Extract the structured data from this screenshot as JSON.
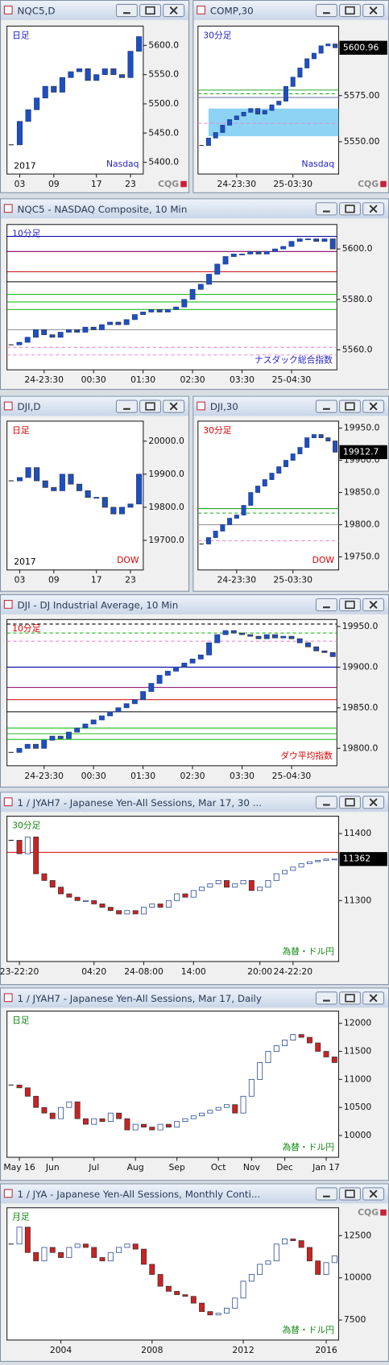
{
  "logo": "CQG",
  "windows": [
    {
      "title": "NQC5,D",
      "ylim": [
        5380,
        5633
      ],
      "up": "#1f4fbf",
      "down": "#1f4fbf",
      "yticks": [
        {
          "value": 5600,
          "label": "5600.0"
        },
        {
          "value": 5550,
          "label": "5550.0"
        },
        {
          "value": 5500,
          "label": "5500.0"
        },
        {
          "value": 5450,
          "label": "5450.0"
        },
        {
          "value": 5400,
          "label": "5400.0"
        }
      ],
      "categories": [
        null,
        "03",
        null,
        null,
        null,
        "09",
        null,
        null,
        null,
        null,
        "17",
        null,
        null,
        null,
        "23",
        null
      ],
      "closes": [
        5430,
        5470,
        5490,
        5510,
        5530,
        5520,
        5545,
        5555,
        5560,
        5540,
        5550,
        5560,
        5550,
        5545,
        5590,
        5615
      ],
      "levels": [],
      "notes": [
        {
          "text": "日足",
          "color": "#2222cc",
          "corner": "tl"
        },
        {
          "text": "2017",
          "color": "#000000",
          "corner": "bl"
        },
        {
          "text": "Nasdaq",
          "color": "#2222cc",
          "corner": "br"
        }
      ]
    },
    {
      "title": "COMP,30",
      "ylim": [
        5532.5,
        5612.7
      ],
      "up": "#1f4fbf",
      "down": "#1f4fbf",
      "last": 5600.96,
      "zone": [
        5553,
        5568
      ],
      "yticks": [
        {
          "value": 5575,
          "label": "5575.00"
        },
        {
          "value": 5550,
          "label": "5550.00"
        }
      ],
      "categories": [
        null,
        null,
        null,
        null,
        null,
        "24-23:30",
        null,
        null,
        null,
        null,
        null,
        null,
        null,
        "25-03:30",
        null,
        null,
        null,
        null,
        null,
        null
      ],
      "closes": [
        5548,
        5552,
        5555,
        5559,
        5562,
        5564,
        5566,
        5568,
        5565,
        5567,
        5570,
        5572,
        5580,
        5585,
        5590,
        5595,
        5598,
        5602,
        5603,
        5601
      ],
      "levels": [
        {
          "value": 5578,
          "color": "#22aa22"
        },
        {
          "value": 5576,
          "color": "#22aa22",
          "dash": true
        },
        {
          "value": 5574,
          "color": "#7777aa"
        },
        {
          "value": 5560,
          "color": "#ee88cc",
          "dash": true
        }
      ],
      "notes": [
        {
          "text": "30分足",
          "color": "#2222cc",
          "corner": "tl"
        },
        {
          "text": "Nasdaq",
          "color": "#2222cc",
          "corner": "br"
        }
      ]
    },
    {
      "title": "NQC5 - NASDAQ Composite, 10 Min",
      "ylim": [
        5552.1,
        5609.7
      ],
      "up": "#1f4fbf",
      "down": "#1f4fbf",
      "yticks": [
        {
          "value": 5600,
          "label": "5600.0"
        },
        {
          "value": 5580,
          "label": "5580.0"
        },
        {
          "value": 5560,
          "label": "5560.0"
        }
      ],
      "categories": [
        null,
        null,
        null,
        null,
        "24-23:30",
        null,
        null,
        null,
        null,
        null,
        "00:30",
        null,
        null,
        null,
        null,
        null,
        "01:30",
        null,
        null,
        null,
        null,
        null,
        "02:30",
        null,
        null,
        null,
        null,
        null,
        "03:30",
        null,
        null,
        null,
        null,
        null,
        "25-04:30",
        null,
        null,
        null,
        null,
        null
      ],
      "closes": [
        5562,
        5563,
        5565,
        5568,
        5566,
        5565,
        5567,
        5568,
        5567,
        5569,
        5568,
        5570,
        5571,
        5570,
        5572,
        5574,
        5575,
        5576,
        5575,
        5576,
        5577,
        5580,
        5584,
        5586,
        5590,
        5594,
        5597,
        5598,
        5598,
        5599,
        5598,
        5599,
        5600,
        5601,
        5603,
        5604,
        5604,
        5603,
        5604,
        5600
      ],
      "levels": [
        {
          "value": 5605,
          "color": "#0000aa"
        },
        {
          "value": 5599,
          "color": "#880066"
        },
        {
          "value": 5591,
          "color": "#cc0000"
        },
        {
          "value": 5587,
          "color": "#000000"
        },
        {
          "value": 5582,
          "color": "#22bb22"
        },
        {
          "value": 5579,
          "color": "#22bb22"
        },
        {
          "value": 5576,
          "color": "#22bb22"
        },
        {
          "value": 5568,
          "color": "#999999"
        },
        {
          "value": 5561,
          "color": "#ee88cc",
          "dash": true
        },
        {
          "value": 5558,
          "color": "#ee88cc",
          "dash": true
        }
      ],
      "notes": [
        {
          "text": "10分足",
          "color": "#2222cc",
          "corner": "tl"
        },
        {
          "text": "ナスダック総合指数",
          "color": "#2222cc",
          "corner": "br"
        }
      ]
    },
    {
      "title": "DJI,D",
      "ylim": [
        19610.5,
        20060.5
      ],
      "up": "#1f4fbf",
      "down": "#1f4fbf",
      "yticks": [
        {
          "value": 20000,
          "label": "20000.0"
        },
        {
          "value": 19900,
          "label": "19900.0"
        },
        {
          "value": 19800,
          "label": "19800.0"
        },
        {
          "value": 19700,
          "label": "19700.0"
        }
      ],
      "categories": [
        null,
        "03",
        null,
        null,
        null,
        "09",
        null,
        null,
        null,
        null,
        "17",
        null,
        null,
        null,
        "23",
        null
      ],
      "closes": [
        19880,
        19890,
        19920,
        19880,
        19860,
        19850,
        19900,
        19870,
        19850,
        19830,
        19830,
        19800,
        19780,
        19800,
        19810,
        19900
      ],
      "levels": [],
      "notes": [
        {
          "text": "日足",
          "color": "#dd0000",
          "corner": "tl"
        },
        {
          "text": "2017",
          "color": "#000000",
          "corner": "bl"
        },
        {
          "text": "DOW",
          "color": "#dd0000",
          "corner": "br"
        }
      ]
    },
    {
      "title": "DJI,30",
      "ylim": [
        19729.7,
        19960.8
      ],
      "up": "#1f4fbf",
      "down": "#1f4fbf",
      "last": 19912.7,
      "yticks": [
        {
          "value": 19950,
          "label": "19950.0"
        },
        {
          "value": 19900,
          "label": "19900.0"
        },
        {
          "value": 19850,
          "label": "19850.0"
        },
        {
          "value": 19800,
          "label": "19800.0"
        },
        {
          "value": 19750,
          "label": "19750.0"
        }
      ],
      "categories": [
        null,
        null,
        null,
        null,
        null,
        "24-23:30",
        null,
        null,
        null,
        null,
        null,
        null,
        null,
        "25-03:30",
        null,
        null,
        null,
        null,
        null,
        null
      ],
      "closes": [
        19770,
        19780,
        19790,
        19800,
        19810,
        19815,
        19830,
        19850,
        19860,
        19870,
        19880,
        19890,
        19900,
        19910,
        19920,
        19935,
        19940,
        19935,
        19930,
        19912.7
      ],
      "levels": [
        {
          "value": 19825,
          "color": "#22aa22"
        },
        {
          "value": 19818,
          "color": "#22aa22",
          "dash": true
        },
        {
          "value": 19800,
          "color": "#999999"
        },
        {
          "value": 19775,
          "color": "#ee88cc",
          "dash": true
        }
      ],
      "notes": [
        {
          "text": "30分足",
          "color": "#dd0000",
          "corner": "tl"
        },
        {
          "text": "DOW",
          "color": "#dd0000",
          "corner": "br"
        }
      ]
    },
    {
      "title": "DJI - DJ Industrial Average, 10 Min",
      "ylim": [
        19778.6,
        19958.6
      ],
      "up": "#1f4fbf",
      "down": "#1f4fbf",
      "yticks": [
        {
          "value": 19950,
          "label": "19950.0"
        },
        {
          "value": 19900,
          "label": "19900.0"
        },
        {
          "value": 19850,
          "label": "19850.0"
        },
        {
          "value": 19800,
          "label": "19800.0"
        }
      ],
      "categories": [
        null,
        null,
        null,
        null,
        "24-23:30",
        null,
        null,
        null,
        null,
        null,
        "00:30",
        null,
        null,
        null,
        null,
        null,
        "01:30",
        null,
        null,
        null,
        null,
        null,
        "02:30",
        null,
        null,
        null,
        null,
        null,
        "03:30",
        null,
        null,
        null,
        null,
        null,
        "25-04:30",
        null,
        null,
        null,
        null,
        null
      ],
      "closes": [
        19795,
        19800,
        19805,
        19800,
        19810,
        19815,
        19812,
        19820,
        19825,
        19830,
        19835,
        19840,
        19845,
        19850,
        19855,
        19860,
        19870,
        19880,
        19890,
        19895,
        19900,
        19905,
        19910,
        19915,
        19930,
        19940,
        19945,
        19942,
        19940,
        19938,
        19935,
        19940,
        19936,
        19938,
        19935,
        19930,
        19925,
        19920,
        19918,
        19913
      ],
      "levels": [
        {
          "value": 19953,
          "color": "#000000",
          "dash": true
        },
        {
          "value": 19942,
          "color": "#22bb22",
          "dash": true
        },
        {
          "value": 19932,
          "color": "#ee88cc",
          "dash": true
        },
        {
          "value": 19900,
          "color": "#0000aa"
        },
        {
          "value": 19875,
          "color": "#880066"
        },
        {
          "value": 19860,
          "color": "#cc0000"
        },
        {
          "value": 19845,
          "color": "#000000"
        },
        {
          "value": 19825,
          "color": "#22bb22"
        },
        {
          "value": 19818,
          "color": "#22bb22"
        },
        {
          "value": 19811,
          "color": "#22bb22"
        }
      ],
      "notes": [
        {
          "text": "10分足",
          "color": "#dd0000",
          "corner": "tl"
        },
        {
          "text": "ダウ平均指数",
          "color": "#dd0000",
          "corner": "br"
        }
      ]
    },
    {
      "title": "1 / JYAH7 - Japanese Yen-All Sessions, Mar 17, 30 ...",
      "ylim": [
        11209,
        11426
      ],
      "up": "#ffffff",
      "down": "#cc2222",
      "last": 11362,
      "yticks": [
        11400,
        11300
      ],
      "categories": [
        null,
        "23-22:20",
        null,
        null,
        null,
        null,
        null,
        null,
        null,
        null,
        "04:20",
        null,
        null,
        null,
        null,
        null,
        "24-08:00",
        null,
        null,
        null,
        null,
        null,
        "14:00",
        null,
        null,
        null,
        null,
        null,
        null,
        null,
        "20:00",
        null,
        null,
        null,
        "24-22:20",
        null,
        null,
        null,
        null,
        null
      ],
      "closes": [
        11390,
        11370,
        11395,
        11340,
        11330,
        11320,
        11310,
        11305,
        11300,
        11300,
        11295,
        11290,
        11285,
        11280,
        11285,
        11280,
        11290,
        11295,
        11290,
        11300,
        11310,
        11305,
        11315,
        11320,
        11325,
        11330,
        11320,
        11325,
        11330,
        11315,
        11320,
        11330,
        11340,
        11345,
        11350,
        11355,
        11358,
        11360,
        11362,
        11362
      ],
      "levels": [
        {
          "value": 11372,
          "color": "#dd2222"
        }
      ],
      "notes": [
        {
          "text": "30分足",
          "color": "#118811",
          "corner": "tl"
        },
        {
          "text": "為替・ドル円",
          "color": "#118811",
          "corner": "br"
        }
      ]
    },
    {
      "title": "1 / JYAH7 - Japanese Yen-All Sessions, Mar 17, Daily",
      "ylim": [
        9612,
        12217
      ],
      "up": "#ffffff",
      "down": "#cc2222",
      "yticks": [
        12000,
        11500,
        11000,
        10500,
        10000
      ],
      "categories": [
        null,
        "May 16",
        null,
        null,
        null,
        "Jun",
        null,
        null,
        null,
        null,
        "Jul",
        null,
        null,
        null,
        null,
        "Aug",
        null,
        null,
        null,
        null,
        "Sep",
        null,
        null,
        null,
        null,
        "Oct",
        null,
        null,
        null,
        "Nov",
        null,
        null,
        null,
        "Dec",
        null,
        null,
        null,
        null,
        "Jan 17",
        null
      ],
      "closes": [
        10900,
        10850,
        10700,
        10500,
        10400,
        10300,
        10500,
        10600,
        10300,
        10200,
        10300,
        10250,
        10400,
        10300,
        10100,
        10200,
        10150,
        10100,
        10200,
        10150,
        10250,
        10300,
        10350,
        10400,
        10450,
        10500,
        10550,
        10400,
        10700,
        11000,
        11300,
        11500,
        11600,
        11700,
        11800,
        11750,
        11650,
        11500,
        11400,
        11300
      ],
      "levels": [],
      "notes": [
        {
          "text": "日足",
          "color": "#118811",
          "corner": "tl"
        },
        {
          "text": "為替・ドル円",
          "color": "#118811",
          "corner": "br"
        }
      ]
    },
    {
      "title": "1 / JYA - Japanese Yen-All Sessions, Monthly Conti...",
      "ylim": [
        6314,
        14149
      ],
      "up": "#ffffff",
      "down": "#cc2222",
      "yticks": [
        12500,
        10000,
        7500
      ],
      "categories": [
        null,
        null,
        null,
        null,
        null,
        null,
        "2004",
        null,
        null,
        null,
        null,
        null,
        null,
        null,
        null,
        null,
        null,
        "2008",
        null,
        null,
        null,
        null,
        null,
        null,
        null,
        null,
        null,
        null,
        "2012",
        null,
        null,
        null,
        null,
        null,
        null,
        null,
        null,
        null,
        "2016",
        null
      ],
      "closes": [
        12000,
        13000,
        11500,
        11000,
        11800,
        11500,
        11200,
        11800,
        12000,
        11800,
        11200,
        11000,
        11500,
        11800,
        12000,
        11700,
        10800,
        10200,
        9500,
        9200,
        9000,
        8900,
        8500,
        8000,
        7800,
        7900,
        8200,
        8800,
        9800,
        10200,
        10800,
        11000,
        12000,
        12300,
        12200,
        11800,
        11000,
        10200,
        10900,
        11300
      ],
      "levels": [],
      "notes": [
        {
          "text": "月足",
          "color": "#118811",
          "corner": "tl"
        },
        {
          "text": "為替・ドル円",
          "color": "#118811",
          "corner": "br"
        }
      ]
    }
  ]
}
